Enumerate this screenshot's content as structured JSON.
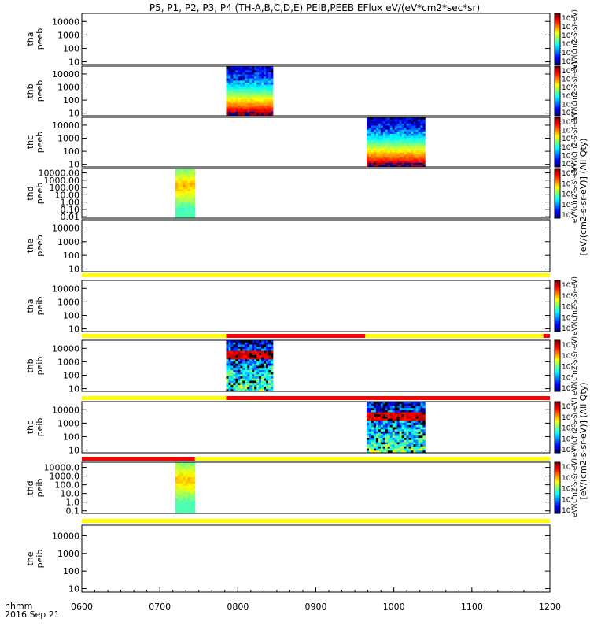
{
  "chart_data": {
    "type": "heatmap",
    "title": "P5, P1, P2, P3, P4 (TH-A,B,C,D,E) PEIB,PEEB EFlux eV/(eV*cm2*sec*sr)",
    "x": {
      "ticks": [
        "0600",
        "0700",
        "0800",
        "0900",
        "1000",
        "1100",
        "1200"
      ],
      "range_hhmm": [
        "0600",
        "1200"
      ],
      "label_line1": "hhmm",
      "label_line2": "2016 Sep 21"
    },
    "panels": [
      {
        "id": "tha-peeb",
        "name_line1": "tha",
        "name_line2": "peeb",
        "yticks": [
          "10",
          "100",
          "1000",
          "10000"
        ],
        "ylog": [
          0.8,
          4.6
        ],
        "blocks": [],
        "colorbar": {
          "labels": [
            "10⁸",
            "10⁷",
            "10⁶",
            "10⁵",
            "10⁴",
            "10³"
          ],
          "unit": "eV/(cm2-s-sr-eV)"
        }
      },
      {
        "id": "thb-peeb",
        "name_line1": "thb",
        "name_line2": "peeb",
        "yticks": [
          "10",
          "100",
          "1000",
          "10000"
        ],
        "ylog": [
          0.8,
          4.6
        ],
        "blocks": [
          {
            "start": "0751",
            "end": "0827",
            "kind": "electron"
          }
        ],
        "colorbar": {
          "labels": [
            "10⁸",
            "10⁷",
            "10⁶",
            "10⁵",
            "10⁴",
            "10³"
          ],
          "unit": "eV/(cm2-s-sr-eV)"
        }
      },
      {
        "id": "thc-peeb",
        "name_line1": "thc",
        "name_line2": "peeb",
        "yticks": [
          "10",
          "100",
          "1000",
          "10000"
        ],
        "ylog": [
          0.8,
          4.6
        ],
        "blocks": [
          {
            "start": "0939",
            "end": "1024",
            "kind": "electron"
          }
        ],
        "colorbar": {
          "labels": [
            "10⁸",
            "10⁷",
            "10⁶",
            "10⁵",
            "10⁴",
            "10³"
          ],
          "unit": "eV/(cm2-s-sr-eV)"
        }
      },
      {
        "id": "thd-peeb",
        "name_line1": "thd",
        "name_line2": "peeb",
        "yticks": [
          "0.01",
          "0.10",
          "1.00",
          "10.00",
          "100.00",
          "1000.00",
          "10000.00"
        ],
        "ylog": [
          -2.2,
          4.6
        ],
        "blocks": [
          {
            "start": "0712",
            "end": "0727",
            "kind": "ion"
          }
        ],
        "colorbar": {
          "labels": [
            "10⁸",
            "10⁷",
            "10⁶",
            "10⁵",
            "10⁴"
          ],
          "unit": "eV/(cm2-s-sr-eV)"
        }
      },
      {
        "id": "the-peeb",
        "name_line1": "the",
        "name_line2": "peeb",
        "yticks": [
          "10",
          "100",
          "1000",
          "10000"
        ],
        "ylog": [
          0.8,
          4.6
        ],
        "blocks": [],
        "colorbar": null
      },
      {
        "id": "tha-peib",
        "name_line1": "tha",
        "name_line2": "peib",
        "yticks": [
          "10",
          "100",
          "1000",
          "10000"
        ],
        "ylog": [
          0.8,
          4.6
        ],
        "blocks": [],
        "colorbar": {
          "labels": [
            "10⁷",
            "10⁶",
            "10⁵",
            "10⁴",
            "10³"
          ],
          "unit": "eV/(cm2-s-sr-eV)"
        }
      },
      {
        "id": "thb-peib",
        "name_line1": "thb",
        "name_line2": "peib",
        "yticks": [
          "10",
          "100",
          "1000",
          "10000"
        ],
        "ylog": [
          0.8,
          4.6
        ],
        "blocks": [
          {
            "start": "0751",
            "end": "0827",
            "kind": "ionsparse"
          }
        ],
        "colorbar": {
          "labels": [
            "10⁷",
            "10⁶",
            "10⁵",
            "10⁴",
            "10³"
          ],
          "unit": "eV/(cm2-s-sr-eV)"
        }
      },
      {
        "id": "thc-peib",
        "name_line1": "thc",
        "name_line2": "peib",
        "yticks": [
          "10",
          "100",
          "1000",
          "10000"
        ],
        "ylog": [
          0.8,
          4.6
        ],
        "blocks": [
          {
            "start": "0939",
            "end": "1024",
            "kind": "ionsparse"
          }
        ],
        "colorbar": {
          "labels": [
            "10⁷",
            "10⁶",
            "10⁵",
            "10⁴",
            "10³"
          ],
          "unit": "eV/(cm2-s-sr-eV)"
        }
      },
      {
        "id": "thd-peib",
        "name_line1": "thd",
        "name_line2": "peib",
        "yticks": [
          "0.1",
          "1.0",
          "10.0",
          "100.0",
          "1000.0",
          "10000.0"
        ],
        "ylog": [
          -1.3,
          4.6
        ],
        "blocks": [
          {
            "start": "0712",
            "end": "0727",
            "kind": "ion"
          }
        ],
        "colorbar": {
          "labels": [
            "10⁷",
            "10⁶",
            "10⁵",
            "10⁴",
            "10³"
          ],
          "unit": "eV/(cm2-s-sr-eV)"
        }
      },
      {
        "id": "the-peib",
        "name_line1": "the",
        "name_line2": "peib",
        "yticks": [
          "10",
          "100",
          "1000",
          "10000"
        ],
        "ylog": [
          0.8,
          4.6
        ],
        "blocks": [],
        "colorbar": null
      }
    ],
    "status_bars": [
      {
        "segments": [
          {
            "start": "0600",
            "end": "1200",
            "color": "#ffff00"
          }
        ]
      },
      {
        "segments": [
          {
            "start": "0600",
            "end": "0751",
            "color": "#ffff00"
          },
          {
            "start": "0751",
            "end": "0938",
            "color": "#ff0000"
          },
          {
            "start": "0938",
            "end": "1155",
            "color": "#ffff00"
          },
          {
            "start": "1155",
            "end": "1200",
            "color": "#ff0000"
          }
        ]
      },
      {
        "segments": [
          {
            "start": "0600",
            "end": "0751",
            "color": "#ffff00"
          },
          {
            "start": "0751",
            "end": "1015",
            "color": "#ff0000"
          },
          {
            "start": "1015",
            "end": "1200",
            "color": "#ff0000"
          }
        ]
      },
      {
        "segments": [
          {
            "start": "0600",
            "end": "0727",
            "color": "#ff0000"
          },
          {
            "start": "0727",
            "end": "1200",
            "color": "#ffff00"
          }
        ]
      },
      {
        "segments": [
          {
            "start": "0600",
            "end": "1200",
            "color": "#ffff00"
          }
        ]
      }
    ]
  },
  "side_labels": {
    "peeb": "[eV/(cm2-s-sr-eV)] (All Qty)",
    "peib": "[eV/(cm2-s-sr-eV)] (All Qty)"
  }
}
